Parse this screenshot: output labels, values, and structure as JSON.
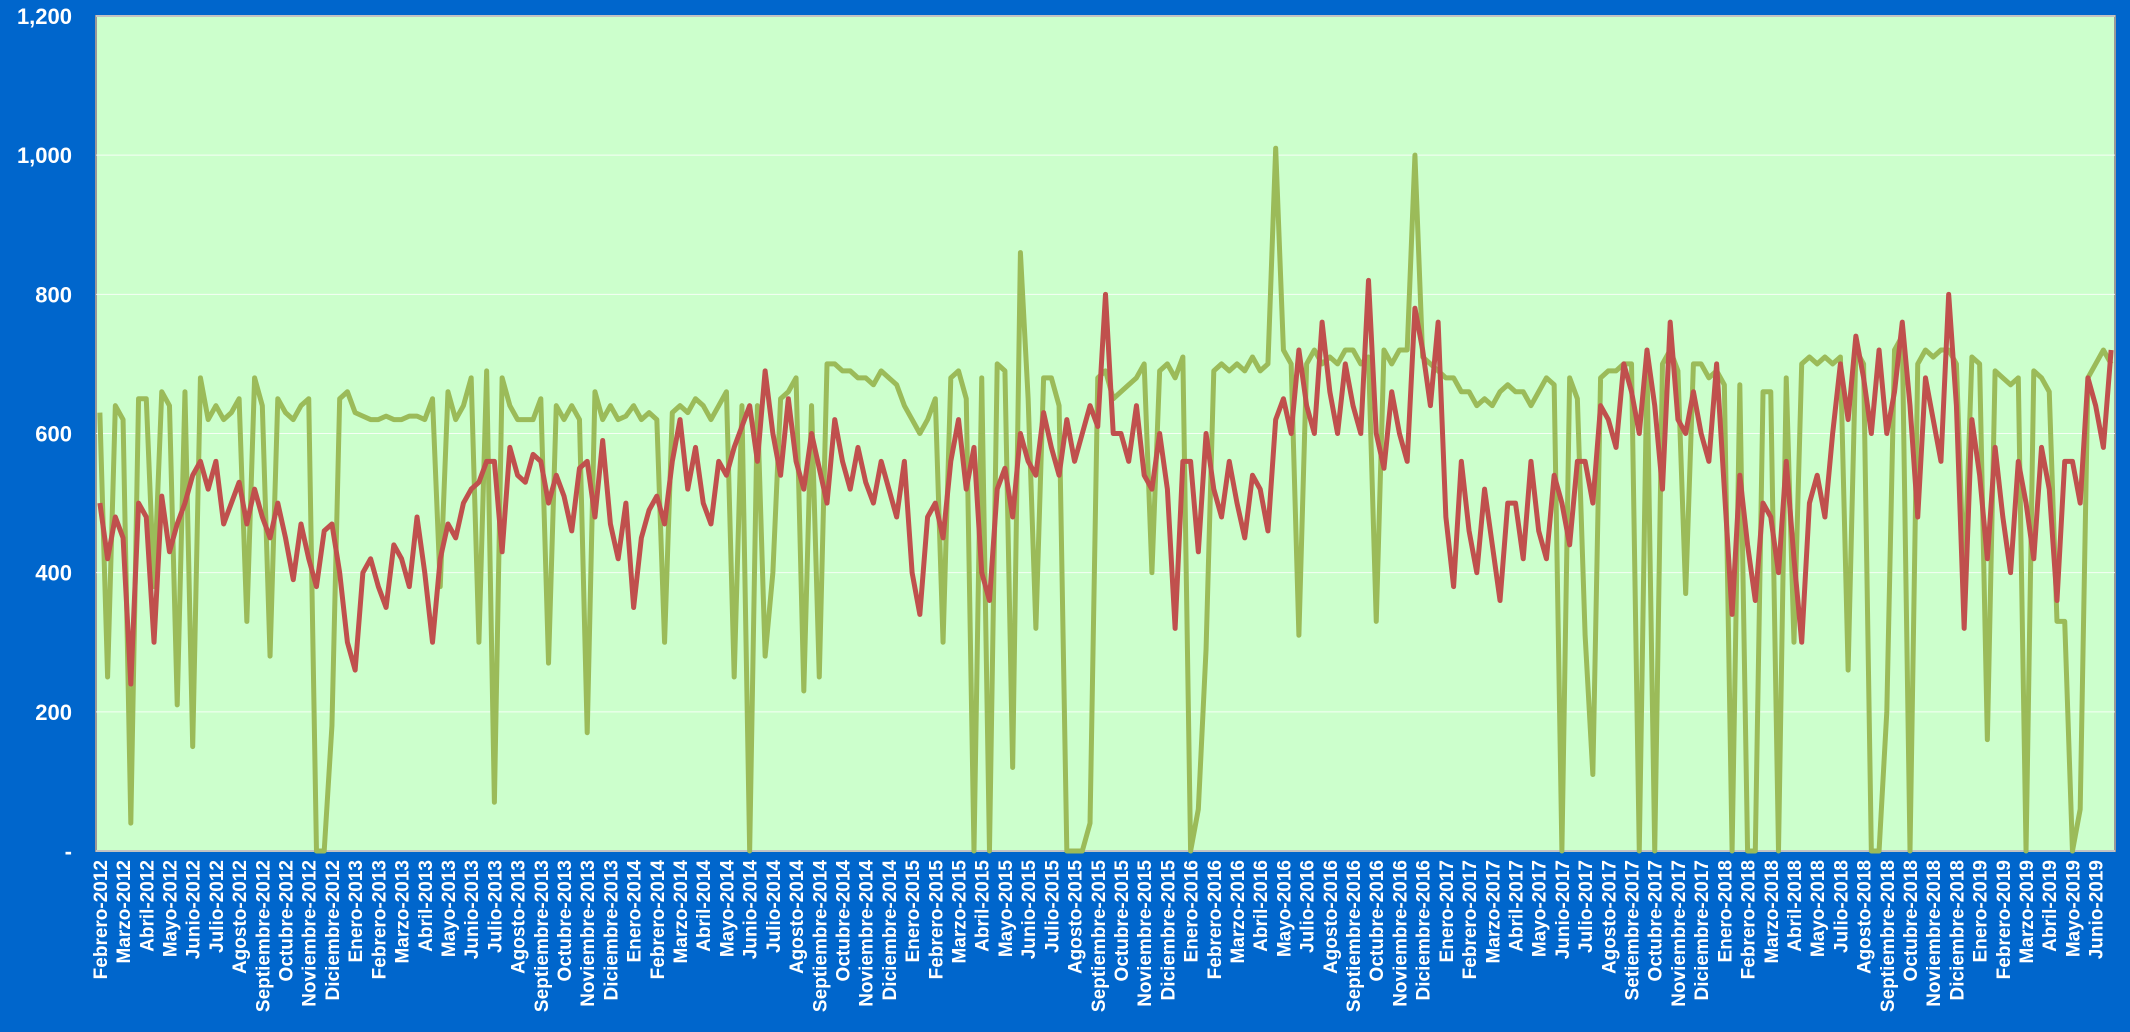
{
  "chart_data": {
    "type": "line",
    "categories": [
      "Febrero-2012",
      null,
      null,
      "Marzo-2012",
      null,
      null,
      "Abril-2012",
      null,
      null,
      "Mayo-2012",
      null,
      null,
      "Junio-2012",
      null,
      null,
      "Julio-2012",
      null,
      null,
      "Agosto-2012",
      null,
      null,
      "Septiembre-2012",
      null,
      null,
      "Octubre-2012",
      null,
      null,
      "Noviembre-2012",
      null,
      null,
      "Diciembre-2012",
      null,
      null,
      "Enero-2013",
      null,
      null,
      "Febrero-2013",
      null,
      null,
      "Marzo-2013",
      null,
      null,
      "Abril-2013",
      null,
      null,
      "Mayo-2013",
      null,
      null,
      "Junio-2013",
      null,
      null,
      "Julio-2013",
      null,
      null,
      "Agosto-2013",
      null,
      null,
      "Septiembre-2013",
      null,
      null,
      "Octubre-2013",
      null,
      null,
      "Noviembre-2013",
      null,
      null,
      "Diciembre-2013",
      null,
      null,
      "Enero-2014",
      null,
      null,
      "Febrero-2014",
      null,
      null,
      "Marzo-2014",
      null,
      null,
      "Abril-2014",
      null,
      null,
      "Mayo-2014",
      null,
      null,
      "Junio-2014",
      null,
      null,
      "Julio-2014",
      null,
      null,
      "Agosto-2014",
      null,
      null,
      "Septiembre-2014",
      null,
      null,
      "Octubre-2014",
      null,
      null,
      "Noviembre-2014",
      null,
      null,
      "Diciembre-2014",
      null,
      null,
      "Enero-2015",
      null,
      null,
      "Febrero-2015",
      null,
      null,
      "Marzo-2015",
      null,
      null,
      "Abril-2015",
      null,
      null,
      "Mayo-2015",
      null,
      null,
      "Junio-2015",
      null,
      null,
      "Julio-2015",
      null,
      null,
      "Agosto-2015",
      null,
      null,
      "Septiembre-2015",
      null,
      null,
      "Octubre-2015",
      null,
      null,
      "Noviembre-2015",
      null,
      null,
      "Diciembre-2015",
      null,
      null,
      "Enero-2016",
      null,
      null,
      "Febrero-2016",
      null,
      null,
      "Marzo-2016",
      null,
      null,
      "Abril-2016",
      null,
      null,
      "Mayo-2016",
      null,
      null,
      "Julio-2016",
      null,
      null,
      "Agosto-2016",
      null,
      null,
      "Septiembre-2016",
      null,
      null,
      "Octubre-2016",
      null,
      null,
      "Noviembre-2016",
      null,
      null,
      "Diciembre-2016",
      null,
      null,
      "Enero-2017",
      null,
      null,
      "Febrero-2017",
      null,
      null,
      "Marzo-2017",
      null,
      null,
      "Abril-2017",
      null,
      null,
      "Mayo-2017",
      null,
      null,
      "Junio-2017",
      null,
      null,
      "Julio-2017",
      null,
      null,
      "Agosto-2017",
      null,
      null,
      "Setiembre-2017",
      null,
      null,
      "Octubre-2017",
      null,
      null,
      "Noviembre-2017",
      null,
      null,
      "Diciembre-2017",
      null,
      null,
      "Enero-2018",
      null,
      null,
      "Febrero-2018",
      null,
      null,
      "Marzo-2018",
      null,
      null,
      "Abril-2018",
      null,
      null,
      "Mayo-2018",
      null,
      null,
      "Julio-2018",
      null,
      null,
      "Agosto-2018",
      null,
      null,
      "Septiembre-2018",
      null,
      null,
      "Octubre-2018",
      null,
      null,
      "Noviembre-2018",
      null,
      null,
      "Diciembre-2018",
      null,
      null,
      "Enero-2019",
      null,
      null,
      "Febrero-2019",
      null,
      null,
      "Marzo-2019",
      null,
      null,
      "Abril-2019",
      null,
      null,
      "Mayo-2019",
      null,
      null,
      "Junio-2019",
      null,
      null
    ],
    "series": [
      {
        "color": "#9bbb59",
        "values": [
          630,
          250,
          640,
          620,
          40,
          650,
          650,
          380,
          660,
          640,
          210,
          660,
          150,
          680,
          620,
          640,
          620,
          630,
          650,
          330,
          680,
          640,
          280,
          650,
          630,
          620,
          640,
          650,
          0,
          0,
          180,
          650,
          660,
          630,
          625,
          620,
          620,
          625,
          620,
          620,
          625,
          625,
          620,
          650,
          380,
          660,
          620,
          640,
          680,
          300,
          690,
          70,
          680,
          640,
          620,
          620,
          620,
          650,
          270,
          640,
          620,
          640,
          620,
          170,
          660,
          620,
          640,
          620,
          625,
          640,
          620,
          630,
          620,
          300,
          630,
          640,
          630,
          650,
          640,
          620,
          640,
          660,
          250,
          640,
          0,
          640,
          280,
          400,
          650,
          660,
          680,
          230,
          640,
          250,
          700,
          700,
          690,
          690,
          680,
          680,
          670,
          690,
          680,
          670,
          640,
          620,
          600,
          620,
          650,
          300,
          680,
          690,
          650,
          0,
          680,
          0,
          700,
          690,
          120,
          860,
          650,
          320,
          680,
          680,
          640,
          0,
          0,
          0,
          40,
          680,
          690,
          650,
          660,
          670,
          680,
          700,
          400,
          690,
          700,
          680,
          710,
          0,
          60,
          290,
          690,
          700,
          690,
          700,
          690,
          710,
          690,
          700,
          1010,
          720,
          700,
          310,
          700,
          720,
          700,
          710,
          700,
          720,
          720,
          700,
          710,
          330,
          720,
          700,
          720,
          720,
          1000,
          710,
          700,
          690,
          680,
          680,
          660,
          660,
          640,
          650,
          640,
          660,
          670,
          660,
          660,
          640,
          660,
          680,
          670,
          0,
          680,
          650,
          310,
          110,
          680,
          690,
          690,
          700,
          700,
          0,
          700,
          0,
          700,
          720,
          690,
          370,
          700,
          700,
          680,
          690,
          670,
          0,
          670,
          0,
          0,
          660,
          660,
          0,
          680,
          300,
          700,
          710,
          700,
          710,
          700,
          710,
          260,
          720,
          700,
          0,
          0,
          200,
          720,
          740,
          0,
          700,
          720,
          710,
          720,
          720,
          700,
          380,
          710,
          700,
          160,
          690,
          680,
          670,
          680,
          0,
          690,
          680,
          660,
          330,
          330,
          0,
          60,
          680,
          700,
          720,
          700
        ]
      },
      {
        "color": "#c0504d",
        "values": [
          500,
          420,
          480,
          450,
          240,
          500,
          480,
          300,
          510,
          430,
          470,
          500,
          540,
          560,
          520,
          560,
          470,
          500,
          530,
          470,
          520,
          480,
          450,
          500,
          450,
          390,
          470,
          420,
          380,
          460,
          470,
          400,
          300,
          260,
          400,
          420,
          380,
          350,
          440,
          420,
          380,
          480,
          400,
          300,
          420,
          470,
          450,
          500,
          520,
          530,
          560,
          560,
          430,
          580,
          540,
          530,
          570,
          560,
          500,
          540,
          510,
          460,
          550,
          560,
          480,
          590,
          470,
          420,
          500,
          350,
          450,
          490,
          510,
          470,
          560,
          620,
          520,
          580,
          500,
          470,
          560,
          540,
          580,
          610,
          640,
          560,
          690,
          600,
          540,
          650,
          560,
          520,
          600,
          550,
          500,
          620,
          560,
          520,
          580,
          530,
          500,
          560,
          520,
          480,
          560,
          400,
          340,
          480,
          500,
          450,
          560,
          620,
          520,
          580,
          400,
          360,
          520,
          550,
          480,
          600,
          560,
          540,
          630,
          580,
          540,
          620,
          560,
          600,
          640,
          610,
          800,
          600,
          600,
          560,
          640,
          540,
          520,
          600,
          520,
          320,
          560,
          560,
          430,
          600,
          520,
          480,
          560,
          500,
          450,
          540,
          520,
          460,
          620,
          650,
          600,
          720,
          640,
          600,
          760,
          660,
          600,
          700,
          640,
          600,
          820,
          600,
          550,
          660,
          600,
          560,
          780,
          720,
          640,
          760,
          480,
          380,
          560,
          460,
          400,
          520,
          440,
          360,
          500,
          500,
          420,
          560,
          460,
          420,
          540,
          500,
          440,
          560,
          560,
          500,
          640,
          620,
          580,
          700,
          660,
          600,
          720,
          640,
          520,
          760,
          620,
          600,
          660,
          600,
          560,
          700,
          520,
          340,
          540,
          440,
          360,
          500,
          480,
          400,
          560,
          420,
          300,
          500,
          540,
          480,
          600,
          700,
          620,
          740,
          680,
          600,
          720,
          600,
          660,
          760,
          640,
          480,
          680,
          620,
          560,
          800,
          640,
          320,
          620,
          540,
          420,
          580,
          480,
          400,
          560,
          500,
          420,
          580,
          520,
          360,
          560,
          560,
          500,
          680,
          640,
          580,
          720
        ]
      }
    ],
    "ylim": [
      0,
      1200
    ],
    "yticks": [
      {
        "value": 0,
        "label": "-"
      },
      200,
      400,
      600,
      800,
      {
        "value": 1000,
        "label": "1,000"
      },
      {
        "value": 1200,
        "label": "1,200"
      }
    ],
    "grid": true
  }
}
